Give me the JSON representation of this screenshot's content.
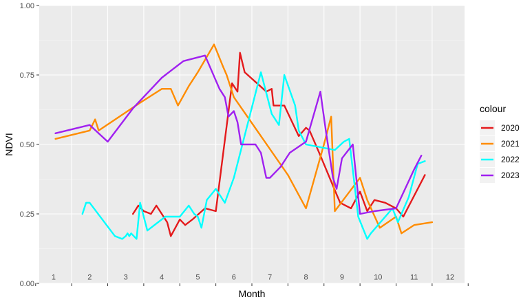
{
  "chart_data": {
    "type": "line",
    "title": "",
    "xlabel": "Month",
    "ylabel": "NDVI",
    "ylim": [
      0,
      1
    ],
    "y_ticks": [
      "0.00",
      "0.25",
      "0.50",
      "0.75",
      "1.00"
    ],
    "x_ticks": [
      "1",
      "2",
      "3",
      "4",
      "5",
      "6",
      "7",
      "8",
      "9",
      "10",
      "11",
      "12"
    ],
    "grid": true,
    "legend": {
      "title": "colour",
      "position": "right"
    },
    "series": [
      {
        "name": "2020",
        "color": "#e41a1c",
        "x": [
          3.2,
          3.35,
          3.5,
          3.7,
          3.85,
          4.15,
          4.25,
          4.5,
          4.65,
          4.85,
          5.2,
          5.5,
          5.95,
          6.1,
          6.17,
          6.3,
          6.9,
          7.05,
          7.1,
          7.4,
          7.8,
          8.0,
          8.1,
          8.4,
          8.85,
          8.95,
          9.1,
          9.25,
          9.5,
          9.7,
          9.9,
          10.2,
          10.5,
          10.7,
          11.3
        ],
        "y": [
          0.25,
          0.28,
          0.26,
          0.25,
          0.28,
          0.22,
          0.17,
          0.23,
          0.21,
          0.23,
          0.27,
          0.26,
          0.72,
          0.69,
          0.83,
          0.76,
          0.69,
          0.7,
          0.64,
          0.64,
          0.53,
          0.56,
          0.55,
          0.46,
          0.32,
          0.29,
          0.28,
          0.27,
          0.33,
          0.26,
          0.3,
          0.29,
          0.27,
          0.24,
          0.39
        ]
      },
      {
        "name": "2021",
        "color": "#ff8c00",
        "x": [
          1.05,
          2.0,
          2.15,
          2.25,
          3.4,
          4.0,
          4.25,
          4.45,
          4.75,
          5.0,
          5.45,
          5.7,
          5.8,
          6.0,
          7.5,
          8.0,
          8.5,
          8.7,
          8.8,
          9.5,
          9.7,
          10.05,
          10.5,
          10.65,
          11.0,
          11.5
        ],
        "y": [
          0.52,
          0.55,
          0.59,
          0.55,
          0.65,
          0.7,
          0.7,
          0.64,
          0.71,
          0.76,
          0.86,
          0.78,
          0.75,
          0.67,
          0.39,
          0.27,
          0.5,
          0.6,
          0.26,
          0.38,
          0.3,
          0.2,
          0.24,
          0.18,
          0.21,
          0.22
        ]
      },
      {
        "name": "2022",
        "color": "#00ffff",
        "x": [
          1.8,
          1.9,
          2.0,
          2.7,
          2.9,
          3.0,
          3.05,
          3.1,
          3.15,
          3.3,
          3.4,
          3.6,
          4.1,
          4.5,
          4.75,
          4.9,
          5.0,
          5.1,
          5.25,
          5.5,
          5.75,
          6.0,
          6.75,
          7.05,
          7.25,
          7.4,
          7.7,
          7.8,
          8.0,
          8.8,
          9.05,
          9.2,
          9.45,
          9.7,
          9.8,
          10.0,
          10.4,
          10.55,
          10.85,
          11.1,
          11.3
        ],
        "y": [
          0.25,
          0.29,
          0.29,
          0.17,
          0.16,
          0.17,
          0.18,
          0.17,
          0.18,
          0.16,
          0.29,
          0.19,
          0.24,
          0.24,
          0.28,
          0.25,
          0.24,
          0.2,
          0.3,
          0.34,
          0.29,
          0.38,
          0.76,
          0.61,
          0.57,
          0.75,
          0.64,
          0.55,
          0.5,
          0.48,
          0.51,
          0.52,
          0.24,
          0.16,
          0.18,
          0.21,
          0.27,
          0.22,
          0.31,
          0.43,
          0.44
        ]
      },
      {
        "name": "2023",
        "color": "#a020f0",
        "x": [
          1.05,
          2.0,
          2.5,
          3.2,
          4.0,
          4.6,
          5.2,
          5.6,
          5.75,
          5.85,
          6.0,
          6.1,
          6.2,
          6.6,
          6.75,
          6.9,
          7.0,
          7.3,
          7.55,
          8.0,
          8.4,
          8.55,
          8.75,
          8.85,
          9.0,
          9.3,
          9.5,
          9.9,
          10.5,
          11.0,
          11.2
        ],
        "y": [
          0.54,
          0.57,
          0.51,
          0.63,
          0.74,
          0.8,
          0.82,
          0.7,
          0.67,
          0.6,
          0.62,
          0.58,
          0.5,
          0.5,
          0.47,
          0.38,
          0.38,
          0.42,
          0.47,
          0.51,
          0.69,
          0.55,
          0.38,
          0.34,
          0.45,
          0.5,
          0.25,
          0.26,
          0.27,
          0.41,
          0.46
        ]
      }
    ]
  }
}
